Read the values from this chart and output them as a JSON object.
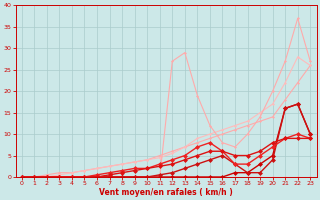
{
  "title": "",
  "xlabel": "Vent moyen/en rafales ( km/h )",
  "ylabel": "",
  "bg_color": "#cce8e8",
  "grid_color": "#aacccc",
  "x_ticks": [
    0,
    1,
    2,
    3,
    4,
    5,
    6,
    7,
    8,
    9,
    10,
    11,
    12,
    13,
    14,
    15,
    16,
    17,
    18,
    19,
    20,
    21,
    22,
    23
  ],
  "y_ticks": [
    0,
    5,
    10,
    15,
    20,
    25,
    30,
    35,
    40
  ],
  "xlim": [
    -0.5,
    23.5
  ],
  "ylim": [
    0,
    40
  ],
  "lines": [
    {
      "x": [
        0,
        1,
        2,
        3,
        4,
        5,
        6,
        7,
        8,
        9,
        10,
        11,
        12,
        13,
        14,
        15,
        16,
        17,
        18,
        19,
        20,
        21,
        22,
        23
      ],
      "y": [
        0,
        0,
        0,
        0,
        0,
        0,
        0,
        0,
        0,
        0,
        0,
        0,
        0,
        0,
        0,
        0,
        0,
        0,
        0,
        0,
        0,
        0,
        0,
        0
      ],
      "color": "#ffaaaa",
      "lw": 0.8,
      "marker": "D",
      "ms": 1.5
    },
    {
      "x": [
        0,
        1,
        2,
        3,
        4,
        5,
        6,
        7,
        8,
        9,
        10,
        11,
        12,
        13,
        14,
        15,
        16,
        17,
        18,
        19,
        20,
        21,
        22,
        23
      ],
      "y": [
        0,
        0,
        0.5,
        1,
        1,
        1.5,
        2,
        2.5,
        3,
        3.5,
        4,
        5,
        6,
        7,
        8,
        9,
        10,
        11,
        12,
        13,
        14,
        18,
        22,
        26
      ],
      "color": "#ffaaaa",
      "lw": 0.8,
      "marker": "D",
      "ms": 1.5
    },
    {
      "x": [
        0,
        1,
        2,
        3,
        4,
        5,
        6,
        7,
        8,
        9,
        10,
        11,
        12,
        13,
        14,
        15,
        16,
        17,
        18,
        19,
        20,
        21,
        22,
        23
      ],
      "y": [
        0,
        0,
        0,
        0.5,
        1,
        1.5,
        2,
        2.5,
        3,
        3.5,
        4,
        4.5,
        5.5,
        7,
        9,
        10,
        11,
        12,
        13,
        15,
        17,
        22,
        28,
        26
      ],
      "color": "#ffbbbb",
      "lw": 0.8,
      "marker": "D",
      "ms": 1.5
    },
    {
      "x": [
        0,
        1,
        2,
        3,
        4,
        5,
        6,
        7,
        8,
        9,
        10,
        11,
        12,
        13,
        14,
        15,
        16,
        17,
        18,
        19,
        20,
        21,
        22,
        23
      ],
      "y": [
        0,
        0,
        0,
        0,
        0,
        0,
        0,
        0,
        0,
        0,
        0,
        0,
        27,
        29,
        19,
        12,
        8,
        7,
        10,
        14,
        20,
        27,
        37,
        27
      ],
      "color": "#ffaaaa",
      "lw": 0.8,
      "marker": "D",
      "ms": 1.5
    },
    {
      "x": [
        0,
        1,
        2,
        3,
        4,
        5,
        6,
        7,
        8,
        9,
        10,
        11,
        12,
        13,
        14,
        15,
        16,
        17,
        18,
        19,
        20,
        21,
        22,
        23
      ],
      "y": [
        0,
        0,
        0,
        0,
        0,
        0,
        0,
        0,
        0,
        0,
        0,
        0,
        0,
        0,
        0,
        0,
        0,
        1,
        1,
        3,
        5,
        16,
        17,
        10
      ],
      "color": "#cc0000",
      "lw": 1.0,
      "marker": "D",
      "ms": 2.5
    },
    {
      "x": [
        0,
        1,
        2,
        3,
        4,
        5,
        6,
        7,
        8,
        9,
        10,
        11,
        12,
        13,
        14,
        15,
        16,
        17,
        18,
        19,
        20,
        21,
        22,
        23
      ],
      "y": [
        0,
        0,
        0,
        0,
        0,
        0,
        0,
        0,
        0,
        0,
        0,
        0.5,
        1,
        2,
        3,
        4,
        5,
        3,
        1,
        1,
        4,
        16,
        17,
        10
      ],
      "color": "#cc1111",
      "lw": 1.0,
      "marker": "D",
      "ms": 2.5
    },
    {
      "x": [
        0,
        1,
        2,
        3,
        4,
        5,
        6,
        7,
        8,
        9,
        10,
        11,
        12,
        13,
        14,
        15,
        16,
        17,
        18,
        19,
        20,
        21,
        22,
        23
      ],
      "y": [
        0,
        0,
        0,
        0,
        0,
        0,
        0.5,
        1,
        1.5,
        2,
        2,
        3,
        4,
        5,
        7,
        8,
        6,
        3,
        3,
        5,
        7,
        9,
        10,
        9
      ],
      "color": "#ee2222",
      "lw": 1.0,
      "marker": "D",
      "ms": 2.5
    },
    {
      "x": [
        0,
        1,
        2,
        3,
        4,
        5,
        6,
        7,
        8,
        9,
        10,
        11,
        12,
        13,
        14,
        15,
        16,
        17,
        18,
        19,
        20,
        21,
        22,
        23
      ],
      "y": [
        0,
        0,
        0,
        0,
        0,
        0,
        0,
        0.5,
        1,
        1.5,
        2,
        2.5,
        3,
        4,
        5,
        6,
        6,
        5,
        5,
        6,
        8,
        9,
        9,
        9
      ],
      "color": "#dd1111",
      "lw": 1.0,
      "marker": "D",
      "ms": 2.5
    }
  ]
}
